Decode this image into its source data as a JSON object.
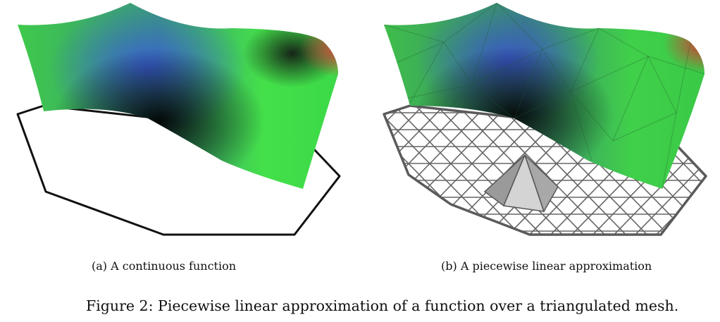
{
  "subfigures": [
    {
      "label": "(a)",
      "text": "A continuous function"
    },
    {
      "label": "(b)",
      "text": "A piecewise linear approximation"
    }
  ],
  "caption": {
    "label": "Figure 2:",
    "text": "Piecewise linear approximation of a function over a triangulated mesh."
  },
  "colors": {
    "surface_green": "#44dd44",
    "surface_blue": "#3355cc",
    "surface_red": "#dd3333",
    "surface_dark": "#000000",
    "mesh_line": "#555555",
    "outline": "#111111",
    "hat_light": "#d4d4d4",
    "hat_dark": "#9a9a9a"
  }
}
